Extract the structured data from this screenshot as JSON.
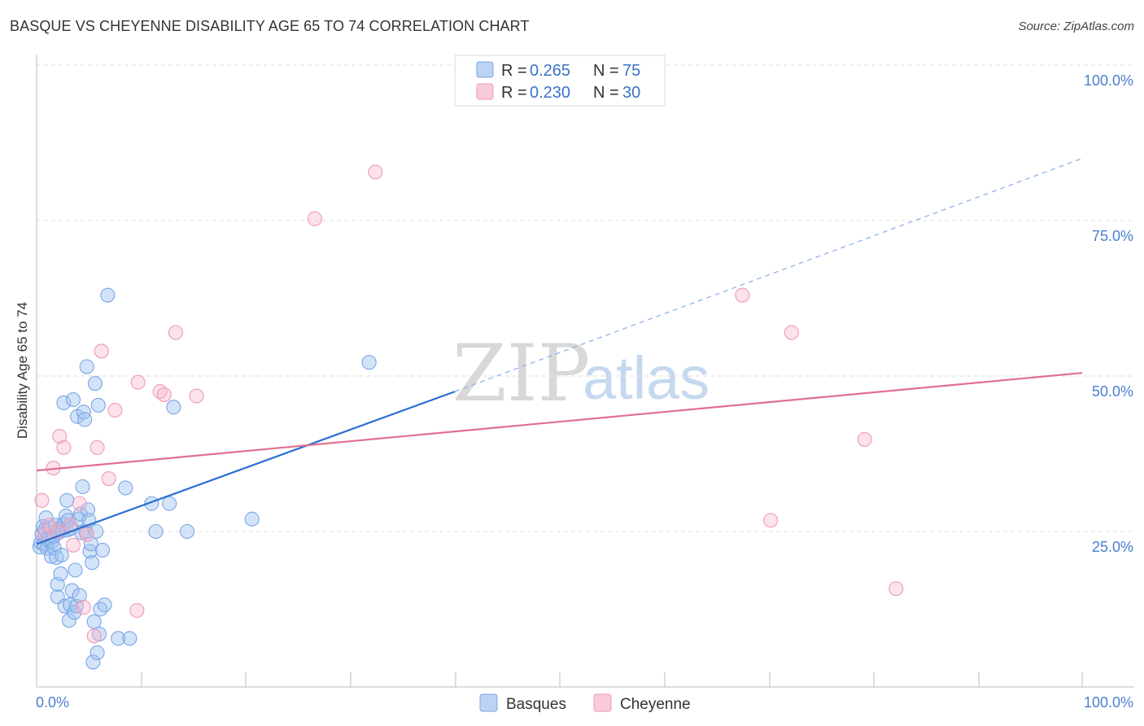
{
  "title": "BASQUE VS CHEYENNE DISABILITY AGE 65 TO 74 CORRELATION CHART",
  "source": "Source: ZipAtlas.com",
  "watermark": {
    "zip": "ZIP",
    "atlas": "atlas"
  },
  "legend_top": [
    {
      "r_label": "R = ",
      "r_value": "0.265",
      "n_label": "N = ",
      "n_value": "75",
      "color": "#7aa6e6"
    },
    {
      "r_label": "R = ",
      "r_value": "0.230",
      "n_label": "N = ",
      "n_value": "30",
      "color": "#f19ab5"
    }
  ],
  "legend_bottom": [
    {
      "label": "Basques",
      "color": "#7aa6e6"
    },
    {
      "label": "Cheyenne",
      "color": "#f19ab5"
    }
  ],
  "chart_data": {
    "type": "scatter",
    "title": "BASQUE VS CHEYENNE DISABILITY AGE 65 TO 74 CORRELATION CHART",
    "xlabel": "",
    "ylabel": "Disability Age 65 to 74",
    "xlim": [
      0,
      100
    ],
    "ylim": [
      0,
      100
    ],
    "x_tick_labels": [
      "0.0%",
      "100.0%"
    ],
    "y_tick_labels": [
      "25.0%",
      "50.0%",
      "75.0%",
      "100.0%"
    ],
    "y_ticks": [
      25,
      50,
      75,
      100
    ],
    "grid": "horizontal dashed",
    "series": [
      {
        "name": "Basques",
        "color": "#7aa6e6",
        "line_color": "#2b6fd6",
        "trend": {
          "x0": 0,
          "y0": 23.0,
          "x1": 40,
          "y1": 47.5,
          "dash_to_x": 100,
          "dash_to_y": 85.0
        },
        "points": [
          [
            0.3,
            22.5
          ],
          [
            0.4,
            23.2
          ],
          [
            0.5,
            24.6
          ],
          [
            0.6,
            25.8
          ],
          [
            0.7,
            23.0
          ],
          [
            0.8,
            25.3
          ],
          [
            0.9,
            27.2
          ],
          [
            1.0,
            22.3
          ],
          [
            1.1,
            24.0
          ],
          [
            1.2,
            23.6
          ],
          [
            1.3,
            25.6
          ],
          [
            1.4,
            21.0
          ],
          [
            1.5,
            23.4
          ],
          [
            1.6,
            24.2
          ],
          [
            1.7,
            22.3
          ],
          [
            1.8,
            26.0
          ],
          [
            1.9,
            20.8
          ],
          [
            2.0,
            14.5
          ],
          [
            2.0,
            16.5
          ],
          [
            2.1,
            24.8
          ],
          [
            2.2,
            25.5
          ],
          [
            2.3,
            18.2
          ],
          [
            2.4,
            21.2
          ],
          [
            2.5,
            25.2
          ],
          [
            2.6,
            26.2
          ],
          [
            2.6,
            45.7
          ],
          [
            2.7,
            13.0
          ],
          [
            2.8,
            27.5
          ],
          [
            2.9,
            25.2
          ],
          [
            2.9,
            30.0
          ],
          [
            3.0,
            26.8
          ],
          [
            3.1,
            10.7
          ],
          [
            3.2,
            13.2
          ],
          [
            3.3,
            25.5
          ],
          [
            3.4,
            15.5
          ],
          [
            3.5,
            46.2
          ],
          [
            3.6,
            12.0
          ],
          [
            3.7,
            18.8
          ],
          [
            3.8,
            13.0
          ],
          [
            3.9,
            43.5
          ],
          [
            4.0,
            27.0
          ],
          [
            4.1,
            14.7
          ],
          [
            4.2,
            27.8
          ],
          [
            4.3,
            24.8
          ],
          [
            4.4,
            32.2
          ],
          [
            4.5,
            44.2
          ],
          [
            4.6,
            43.0
          ],
          [
            4.7,
            25.0
          ],
          [
            4.8,
            51.5
          ],
          [
            4.9,
            28.5
          ],
          [
            5.0,
            26.8
          ],
          [
            5.1,
            21.8
          ],
          [
            5.2,
            23.0
          ],
          [
            5.3,
            20.0
          ],
          [
            5.4,
            4.0
          ],
          [
            5.5,
            10.5
          ],
          [
            5.6,
            48.8
          ],
          [
            5.7,
            25.0
          ],
          [
            5.8,
            5.5
          ],
          [
            5.9,
            45.3
          ],
          [
            6.0,
            8.5
          ],
          [
            6.1,
            12.5
          ],
          [
            6.3,
            22.0
          ],
          [
            6.5,
            13.2
          ],
          [
            6.8,
            63.0
          ],
          [
            7.8,
            7.8
          ],
          [
            8.5,
            32.0
          ],
          [
            8.9,
            7.8
          ],
          [
            11.0,
            29.5
          ],
          [
            11.4,
            25.0
          ],
          [
            12.7,
            29.5
          ],
          [
            13.1,
            45.0
          ],
          [
            14.4,
            25.0
          ],
          [
            20.6,
            27.0
          ],
          [
            31.8,
            52.2
          ]
        ]
      },
      {
        "name": "Cheyenne",
        "color": "#f19ab5",
        "line_color": "#e0708f",
        "trend": {
          "x0": 0,
          "y0": 34.8,
          "x1": 100,
          "y1": 50.5
        },
        "points": [
          [
            0.5,
            30.0
          ],
          [
            0.8,
            24.5
          ],
          [
            1.2,
            26.0
          ],
          [
            1.6,
            35.2
          ],
          [
            2.0,
            25.0
          ],
          [
            2.2,
            40.3
          ],
          [
            2.6,
            38.5
          ],
          [
            3.2,
            26.0
          ],
          [
            3.5,
            22.8
          ],
          [
            4.1,
            29.5
          ],
          [
            4.5,
            12.8
          ],
          [
            4.8,
            24.5
          ],
          [
            5.5,
            8.2
          ],
          [
            5.8,
            38.5
          ],
          [
            6.2,
            54.0
          ],
          [
            6.9,
            33.5
          ],
          [
            7.5,
            44.5
          ],
          [
            9.6,
            12.3
          ],
          [
            9.7,
            49.0
          ],
          [
            11.8,
            47.5
          ],
          [
            12.2,
            47.0
          ],
          [
            13.3,
            57.0
          ],
          [
            15.3,
            46.8
          ],
          [
            26.6,
            75.3
          ],
          [
            32.4,
            82.8
          ],
          [
            67.5,
            63.0
          ],
          [
            70.2,
            26.8
          ],
          [
            72.2,
            57.0
          ],
          [
            79.2,
            39.8
          ],
          [
            82.2,
            15.8
          ]
        ]
      }
    ]
  }
}
